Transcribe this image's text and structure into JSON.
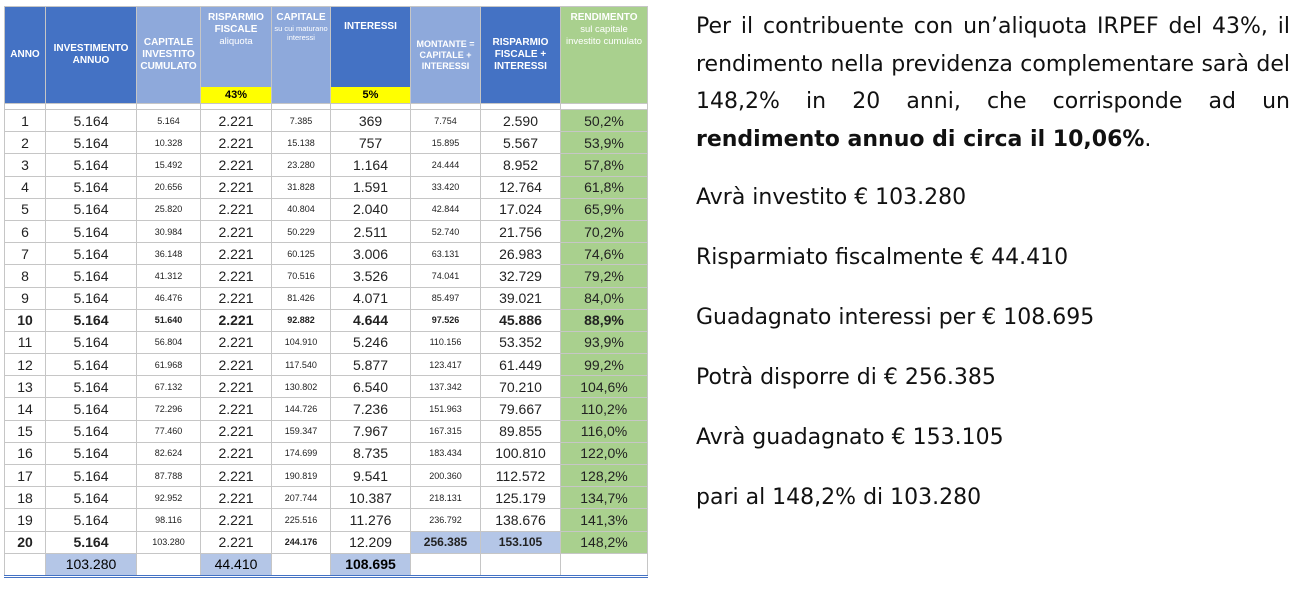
{
  "table": {
    "headers": {
      "anno": "ANNO",
      "investimento": "INVESTIMENTO ANNUO",
      "capitale_cumulato": "CAPITALE INVESTITO CUMULATO",
      "risparmio_fiscale": "RISPARMIO FISCALE",
      "risparmio_fiscale_sub": "aliquota",
      "aliquota_value": "43%",
      "capitale_maturano": "CAPITALE",
      "capitale_maturano_sub": "su cui maturano interessi",
      "interessi": "INTERESSI",
      "interessi_rate": "5%",
      "montante": "MONTANTE = CAPITALE + INTERESSI",
      "risparmio_interessi": "RISPARMIO FISCALE + INTERESSI",
      "rendimento": "RENDIMENTO",
      "rendimento_sub": "sul capitale investito cumulato"
    },
    "rows": [
      {
        "anno": "1",
        "inv": "5.164",
        "cum": "5.164",
        "risp": "2.221",
        "cap": "7.385",
        "int": "369",
        "mont": "7.754",
        "rfi": "2.590",
        "rend": "50,2%"
      },
      {
        "anno": "2",
        "inv": "5.164",
        "cum": "10.328",
        "risp": "2.221",
        "cap": "15.138",
        "int": "757",
        "mont": "15.895",
        "rfi": "5.567",
        "rend": "53,9%"
      },
      {
        "anno": "3",
        "inv": "5.164",
        "cum": "15.492",
        "risp": "2.221",
        "cap": "23.280",
        "int": "1.164",
        "mont": "24.444",
        "rfi": "8.952",
        "rend": "57,8%"
      },
      {
        "anno": "4",
        "inv": "5.164",
        "cum": "20.656",
        "risp": "2.221",
        "cap": "31.828",
        "int": "1.591",
        "mont": "33.420",
        "rfi": "12.764",
        "rend": "61,8%"
      },
      {
        "anno": "5",
        "inv": "5.164",
        "cum": "25.820",
        "risp": "2.221",
        "cap": "40.804",
        "int": "2.040",
        "mont": "42.844",
        "rfi": "17.024",
        "rend": "65,9%"
      },
      {
        "anno": "6",
        "inv": "5.164",
        "cum": "30.984",
        "risp": "2.221",
        "cap": "50.229",
        "int": "2.511",
        "mont": "52.740",
        "rfi": "21.756",
        "rend": "70,2%"
      },
      {
        "anno": "7",
        "inv": "5.164",
        "cum": "36.148",
        "risp": "2.221",
        "cap": "60.125",
        "int": "3.006",
        "mont": "63.131",
        "rfi": "26.983",
        "rend": "74,6%"
      },
      {
        "anno": "8",
        "inv": "5.164",
        "cum": "41.312",
        "risp": "2.221",
        "cap": "70.516",
        "int": "3.526",
        "mont": "74.041",
        "rfi": "32.729",
        "rend": "79,2%"
      },
      {
        "anno": "9",
        "inv": "5.164",
        "cum": "46.476",
        "risp": "2.221",
        "cap": "81.426",
        "int": "4.071",
        "mont": "85.497",
        "rfi": "39.021",
        "rend": "84,0%"
      },
      {
        "anno": "10",
        "inv": "5.164",
        "cum": "51.640",
        "risp": "2.221",
        "cap": "92.882",
        "int": "4.644",
        "mont": "97.526",
        "rfi": "45.886",
        "rend": "88,9%",
        "bold": true
      },
      {
        "anno": "11",
        "inv": "5.164",
        "cum": "56.804",
        "risp": "2.221",
        "cap": "104.910",
        "int": "5.246",
        "mont": "110.156",
        "rfi": "53.352",
        "rend": "93,9%"
      },
      {
        "anno": "12",
        "inv": "5.164",
        "cum": "61.968",
        "risp": "2.221",
        "cap": "117.540",
        "int": "5.877",
        "mont": "123.417",
        "rfi": "61.449",
        "rend": "99,2%"
      },
      {
        "anno": "13",
        "inv": "5.164",
        "cum": "67.132",
        "risp": "2.221",
        "cap": "130.802",
        "int": "6.540",
        "mont": "137.342",
        "rfi": "70.210",
        "rend": "104,6%"
      },
      {
        "anno": "14",
        "inv": "5.164",
        "cum": "72.296",
        "risp": "2.221",
        "cap": "144.726",
        "int": "7.236",
        "mont": "151.963",
        "rfi": "79.667",
        "rend": "110,2%"
      },
      {
        "anno": "15",
        "inv": "5.164",
        "cum": "77.460",
        "risp": "2.221",
        "cap": "159.347",
        "int": "7.967",
        "mont": "167.315",
        "rfi": "89.855",
        "rend": "116,0%"
      },
      {
        "anno": "16",
        "inv": "5.164",
        "cum": "82.624",
        "risp": "2.221",
        "cap": "174.699",
        "int": "8.735",
        "mont": "183.434",
        "rfi": "100.810",
        "rend": "122,0%"
      },
      {
        "anno": "17",
        "inv": "5.164",
        "cum": "87.788",
        "risp": "2.221",
        "cap": "190.819",
        "int": "9.541",
        "mont": "200.360",
        "rfi": "112.572",
        "rend": "128,2%"
      },
      {
        "anno": "18",
        "inv": "5.164",
        "cum": "92.952",
        "risp": "2.221",
        "cap": "207.744",
        "int": "10.387",
        "mont": "218.131",
        "rfi": "125.179",
        "rend": "134,7%"
      },
      {
        "anno": "19",
        "inv": "5.164",
        "cum": "98.116",
        "risp": "2.221",
        "cap": "225.516",
        "int": "11.276",
        "mont": "236.792",
        "rfi": "138.676",
        "rend": "141,3%"
      },
      {
        "anno": "20",
        "inv": "5.164",
        "cum": "103.280",
        "risp": "2.221",
        "cap": "244.176",
        "int": "12.209",
        "mont": "256.385",
        "rfi": "153.105",
        "rend": "148,2%",
        "last": true
      }
    ],
    "totals": {
      "investimento": "103.280",
      "risparmio": "44.410",
      "interessi": "108.695"
    }
  },
  "notes": {
    "intro_text": "Per il contribuente con un’aliquota IRPEF del 43%, il rendimento nella previdenza complementare sarà del 148,2% in 20 anni, che corrisponde ad un ",
    "intro_bold": "rendimento annuo di circa il 10,06%",
    "intro_end": ".",
    "lines": [
      "Avrà investito € 103.280",
      "Risparmiato fiscalmente € 44.410",
      "Guadagnato interessi per € 108.695",
      "Potrà disporre di € 256.385",
      "Avrà guadagnato € 153.105",
      "pari al 148,2% di 103.280"
    ]
  },
  "colors": {
    "header_blue": "#8ea9db",
    "header_dark_blue": "#4472c4",
    "highlight_blue": "#b4c6e7",
    "yellow": "#ffff00",
    "green": "#a9d08e"
  }
}
